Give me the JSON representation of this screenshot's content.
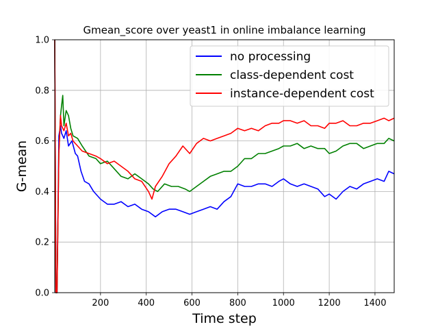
{
  "chart_data": {
    "type": "line",
    "title": "Gmean_score over yeast1 in online imbalance learning",
    "xlabel": "Time step",
    "ylabel": "G-mean",
    "xlim": [
      0,
      1484
    ],
    "ylim": [
      0.0,
      1.0
    ],
    "xticks": [
      200,
      400,
      600,
      800,
      1000,
      1200,
      1400
    ],
    "xtick_labels": [
      "200",
      "400",
      "600",
      "800",
      "1000",
      "1200",
      "1400"
    ],
    "yticks": [
      0.0,
      0.2,
      0.4,
      0.6,
      0.8,
      1.0
    ],
    "ytick_labels": [
      "0.0",
      "0.2",
      "0.4",
      "0.6",
      "0.8",
      "1.0"
    ],
    "grid": true,
    "legend_position": "top-right",
    "series": [
      {
        "name": "no processing",
        "color": "#0000ff",
        "x": [
          0,
          5,
          10,
          18,
          25,
          30,
          40,
          50,
          60,
          75,
          90,
          100,
          115,
          130,
          150,
          170,
          200,
          230,
          260,
          290,
          320,
          350,
          380,
          410,
          440,
          470,
          500,
          530,
          560,
          590,
          620,
          650,
          680,
          710,
          740,
          770,
          800,
          830,
          860,
          890,
          920,
          950,
          980,
          1000,
          1030,
          1060,
          1090,
          1120,
          1150,
          1180,
          1200,
          1230,
          1260,
          1290,
          1320,
          1350,
          1380,
          1410,
          1440,
          1460,
          1484
        ],
        "y": [
          1.0,
          0.0,
          0.0,
          0.62,
          0.66,
          0.63,
          0.61,
          0.64,
          0.58,
          0.6,
          0.55,
          0.54,
          0.48,
          0.44,
          0.43,
          0.4,
          0.37,
          0.35,
          0.35,
          0.36,
          0.34,
          0.35,
          0.33,
          0.32,
          0.3,
          0.32,
          0.33,
          0.33,
          0.32,
          0.31,
          0.32,
          0.33,
          0.34,
          0.33,
          0.36,
          0.38,
          0.43,
          0.42,
          0.42,
          0.43,
          0.43,
          0.42,
          0.44,
          0.45,
          0.43,
          0.42,
          0.43,
          0.42,
          0.41,
          0.38,
          0.39,
          0.37,
          0.4,
          0.42,
          0.41,
          0.43,
          0.44,
          0.45,
          0.44,
          0.48,
          0.47
        ]
      },
      {
        "name": "class-dependent cost",
        "color": "#008000",
        "x": [
          0,
          5,
          10,
          18,
          25,
          30,
          35,
          40,
          50,
          60,
          70,
          80,
          100,
          120,
          150,
          180,
          200,
          230,
          260,
          290,
          320,
          350,
          380,
          410,
          430,
          450,
          480,
          510,
          540,
          570,
          590,
          620,
          650,
          680,
          710,
          740,
          770,
          800,
          830,
          860,
          890,
          920,
          950,
          980,
          1000,
          1030,
          1060,
          1090,
          1120,
          1150,
          1180,
          1200,
          1230,
          1260,
          1290,
          1320,
          1350,
          1380,
          1410,
          1440,
          1460,
          1484
        ],
        "y": [
          1.0,
          0.0,
          0.0,
          0.55,
          0.7,
          0.74,
          0.78,
          0.66,
          0.72,
          0.7,
          0.65,
          0.62,
          0.61,
          0.58,
          0.54,
          0.53,
          0.51,
          0.52,
          0.49,
          0.46,
          0.45,
          0.47,
          0.45,
          0.43,
          0.41,
          0.4,
          0.43,
          0.42,
          0.42,
          0.41,
          0.4,
          0.42,
          0.44,
          0.46,
          0.47,
          0.48,
          0.48,
          0.5,
          0.53,
          0.53,
          0.55,
          0.55,
          0.56,
          0.57,
          0.58,
          0.58,
          0.59,
          0.57,
          0.58,
          0.57,
          0.57,
          0.55,
          0.56,
          0.58,
          0.59,
          0.59,
          0.57,
          0.58,
          0.59,
          0.59,
          0.61,
          0.6
        ]
      },
      {
        "name": "instance-dependent cost",
        "color": "#ff0000",
        "x": [
          0,
          5,
          10,
          18,
          25,
          30,
          40,
          50,
          60,
          70,
          80,
          100,
          120,
          150,
          180,
          200,
          230,
          260,
          290,
          320,
          350,
          380,
          410,
          425,
          440,
          470,
          500,
          530,
          560,
          590,
          620,
          650,
          680,
          710,
          740,
          770,
          800,
          830,
          860,
          890,
          920,
          950,
          980,
          1000,
          1030,
          1060,
          1090,
          1120,
          1150,
          1180,
          1200,
          1230,
          1260,
          1290,
          1320,
          1350,
          1380,
          1410,
          1440,
          1460,
          1484
        ],
        "y": [
          1.0,
          0.0,
          0.0,
          0.55,
          0.7,
          0.66,
          0.64,
          0.67,
          0.62,
          0.63,
          0.6,
          0.58,
          0.56,
          0.55,
          0.54,
          0.53,
          0.51,
          0.52,
          0.5,
          0.48,
          0.45,
          0.44,
          0.4,
          0.37,
          0.42,
          0.46,
          0.51,
          0.54,
          0.58,
          0.55,
          0.59,
          0.61,
          0.6,
          0.61,
          0.62,
          0.63,
          0.65,
          0.64,
          0.65,
          0.64,
          0.66,
          0.67,
          0.67,
          0.68,
          0.68,
          0.67,
          0.68,
          0.66,
          0.66,
          0.65,
          0.67,
          0.67,
          0.68,
          0.66,
          0.66,
          0.67,
          0.67,
          0.68,
          0.69,
          0.68,
          0.69
        ]
      }
    ]
  }
}
